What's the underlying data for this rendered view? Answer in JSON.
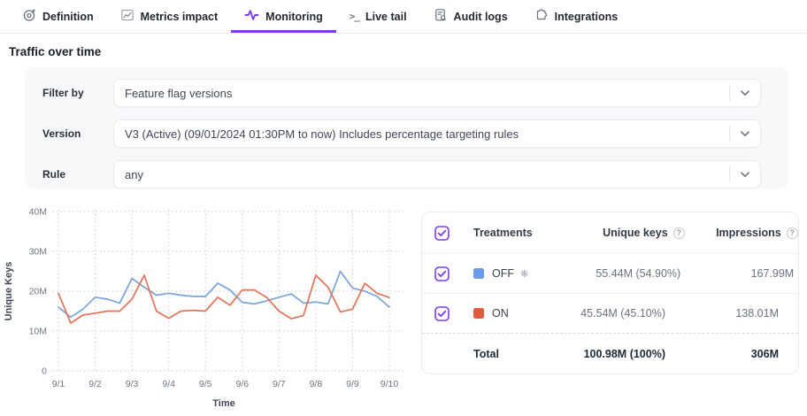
{
  "tabs": [
    {
      "label": "Definition",
      "icon": "target-icon",
      "active": false
    },
    {
      "label": "Metrics impact",
      "icon": "line-chart-icon",
      "active": false
    },
    {
      "label": "Monitoring",
      "icon": "pulse-icon",
      "active": true
    },
    {
      "label": "Live tail",
      "icon": "terminal-icon",
      "active": false
    },
    {
      "label": "Audit logs",
      "icon": "document-search-icon",
      "active": false
    },
    {
      "label": "Integrations",
      "icon": "puzzle-icon",
      "active": false
    }
  ],
  "page": {
    "section_title": "Traffic over time"
  },
  "filters": {
    "rows": [
      {
        "label": "Filter by",
        "value": "Feature flag versions"
      },
      {
        "label": "Version",
        "value": "V3 (Active) (09/01/2024 01:30PM to now) Includes percentage targeting rules"
      },
      {
        "label": "Rule",
        "value": "any"
      }
    ]
  },
  "chart_data": {
    "type": "line",
    "xlabel": "Time",
    "ylabel": "Unique Keys",
    "unit": "millions",
    "ylim_m": [
      0,
      40
    ],
    "yticks_m": [
      0,
      10,
      20,
      30,
      40
    ],
    "ytick_labels": [
      "0",
      "10M",
      "20M",
      "30M",
      "40M"
    ],
    "categories": [
      "9/1",
      "9/2",
      "9/3",
      "9/4",
      "9/5",
      "9/6",
      "9/7",
      "9/8",
      "9/9",
      "9/10"
    ],
    "points_per_day": 3,
    "grid": "dotted",
    "legend_position": "table-right",
    "series": [
      {
        "name": "OFF",
        "color": "#7AA2DB",
        "values_m": [
          16,
          13.5,
          15.5,
          18.5,
          18,
          17,
          23.2,
          21,
          19,
          19.5,
          19,
          18.7,
          18.7,
          22,
          20.3,
          17.2,
          16.8,
          17.6,
          18.5,
          19.3,
          17,
          17.3,
          16.8,
          25,
          20.8,
          20,
          18.7,
          16
        ]
      },
      {
        "name": "ON",
        "color": "#E2735A",
        "values_m": [
          19.5,
          12,
          14,
          14.5,
          15,
          15,
          18,
          24,
          15,
          13.2,
          15,
          15.2,
          15,
          18.5,
          16.5,
          20.3,
          20.3,
          18.4,
          15,
          13.1,
          13.9,
          24,
          21,
          14.8,
          15.5,
          22,
          19.5,
          18.4
        ]
      }
    ]
  },
  "table": {
    "select_all_checked": true,
    "headers": {
      "treatments": "Treatments",
      "unique_keys": "Unique keys",
      "impressions": "Impressions"
    },
    "rows": [
      {
        "checked": true,
        "name": "OFF",
        "swatch_color": "#6C9BE8",
        "default_marker": "❋",
        "unique_keys": "55.44M (54.90%)",
        "impressions": "167.99M"
      },
      {
        "checked": true,
        "name": "ON",
        "swatch_color": "#E25B41",
        "default_marker": "",
        "unique_keys": "45.54M (45.10%)",
        "impressions": "138.01M"
      }
    ],
    "total": {
      "label": "Total",
      "unique_keys": "100.98M (100%)",
      "impressions": "306M"
    }
  },
  "colors": {
    "accent_purple": "#7c3aed",
    "series_off_blue": "#7AA2DB",
    "series_on_red": "#E2735A"
  }
}
